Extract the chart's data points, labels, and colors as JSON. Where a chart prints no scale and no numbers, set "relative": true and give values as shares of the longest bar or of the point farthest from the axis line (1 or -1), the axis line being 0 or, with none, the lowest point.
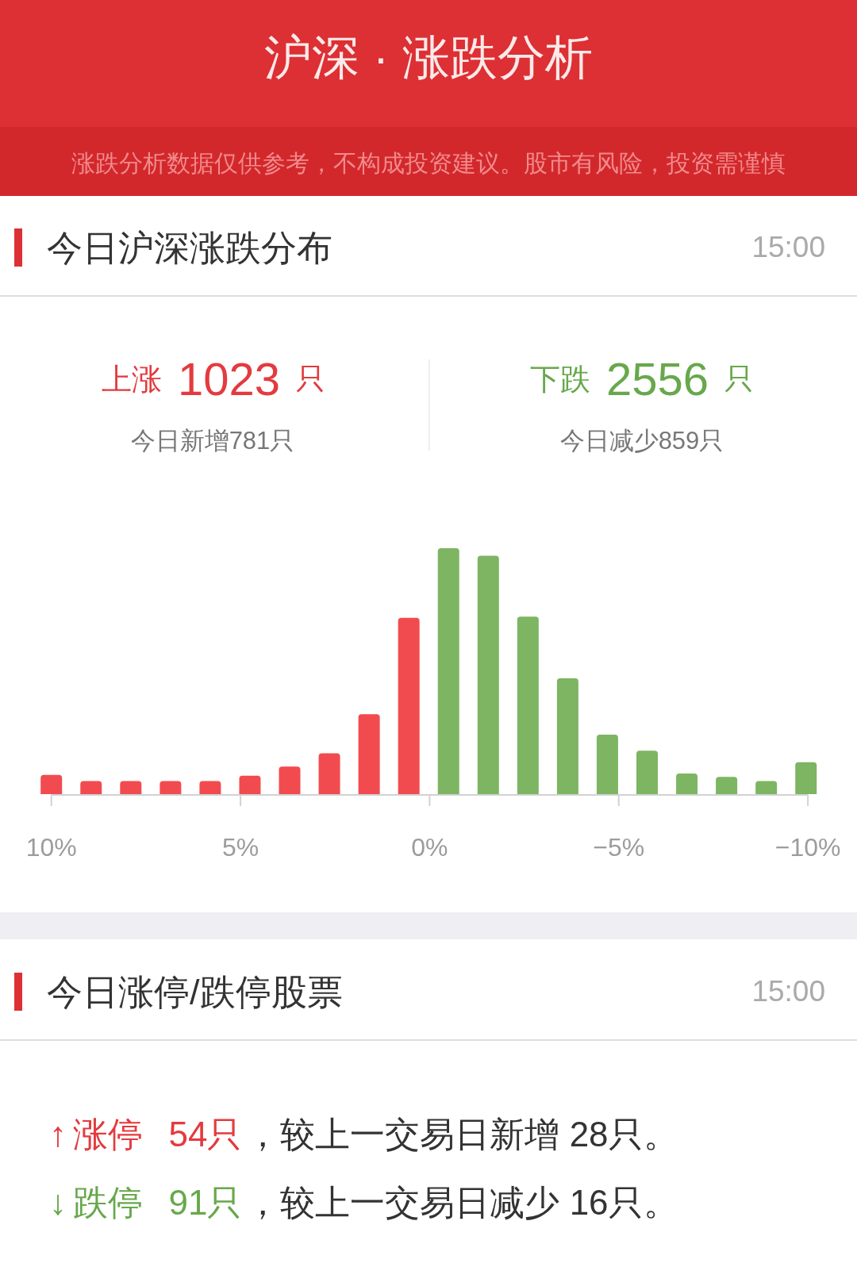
{
  "chart_data": {
    "type": "bar",
    "title": "沪深 · 涨跌分析",
    "subtitle": "涨跌分析数据仅供参考，不构成投资建议。股市有风险，投资需谨慎",
    "relative": true,
    "series": [
      {
        "color": "#f24b4f",
        "x": [
          10,
          8.95,
          7.9,
          6.85,
          5.8,
          4.75,
          3.7,
          2.65,
          1.6,
          0.55
        ],
        "values": [
          0.078,
          0.053,
          0.053,
          0.053,
          0.053,
          0.075,
          0.112,
          0.166,
          0.325,
          0.717
        ]
      },
      {
        "color": "#7db562",
        "x": [
          -0.5,
          -1.55,
          -2.6,
          -3.65,
          -4.7,
          -5.75,
          -6.8,
          -7.85,
          -8.9,
          -9.95
        ],
        "values": [
          1,
          0.969,
          0.722,
          0.471,
          0.242,
          0.177,
          0.084,
          0.07,
          0.053,
          0.13
        ]
      }
    ],
    "xlim": [
      10,
      -10
    ],
    "xticks": [
      {
        "value": 10,
        "label": "10%"
      },
      {
        "value": 5,
        "label": "5%"
      },
      {
        "value": 0,
        "label": "0%"
      },
      {
        "value": -5,
        "label": "−5%"
      },
      {
        "value": -10,
        "label": "−10%"
      }
    ],
    "annotations": [
      "今日沪深涨跌分布",
      "15:00",
      "上涨 1023 只",
      "今日新增781只",
      "下跌 2556 只",
      "今日减少859只",
      "今日涨停/跌停股票",
      "15:00",
      "↑ 涨停 54只",
      "，较上一交易日新增 28只。",
      "↓ 跌停 91只",
      "，较上一交易日减少 16只。"
    ]
  }
}
